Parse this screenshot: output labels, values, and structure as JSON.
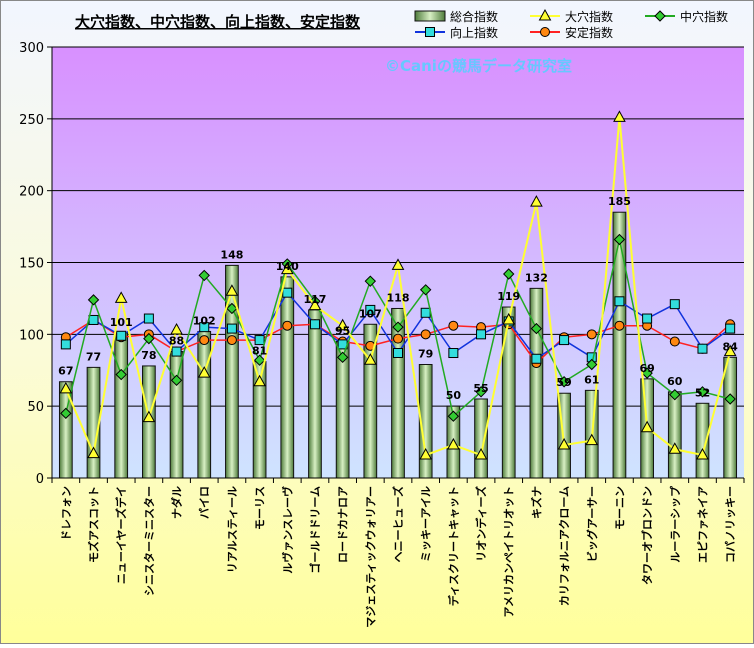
{
  "chart_data": {
    "type": "bar",
    "title": "大穴指数、中穴指数、向上指数、安定指数",
    "watermark": "©Caniの競馬データ研究室",
    "ylim": [
      0,
      300
    ],
    "yticks": [
      0,
      50,
      100,
      150,
      200,
      250,
      300
    ],
    "grid": true,
    "legend_position": "top-right",
    "categories": [
      "ドレフォン",
      "モズアスコット",
      "ニューイヤーズデイ",
      "シニスターミニスター",
      "ナダル",
      "パイロ",
      "リアルスティール",
      "モーリス",
      "ルヴァンスレーヴ",
      "ゴールドドリーム",
      "ロードカナロア",
      "マジェスティックウォリアー",
      "ヘニーヒューズ",
      "ミッキーアイル",
      "ディスクリートキャット",
      "リオンディーズ",
      "アメリカンペイトリオット",
      "キズナ",
      "カリフォルニアクローム",
      "ビッグアーサー",
      "モーニン",
      "タワーオブロンドン",
      "ルーラーシップ",
      "エピファネイア",
      "コパノリッキー"
    ],
    "series": [
      {
        "name": "総合指数",
        "type": "bar",
        "color": "#b9dca0",
        "values": [
          67,
          77,
          101,
          78,
          88,
          102,
          148,
          81,
          140,
          117,
          95,
          107,
          118,
          79,
          50,
          55,
          119,
          132,
          59,
          61,
          185,
          69,
          60,
          52,
          84
        ]
      },
      {
        "name": "大穴指数",
        "type": "line",
        "color": "#ffff33",
        "marker": "triangle",
        "values": [
          62,
          17,
          125,
          42,
          103,
          73,
          130,
          67,
          145,
          120,
          106,
          82,
          148,
          16,
          23,
          16,
          110,
          192,
          23,
          26,
          251,
          35,
          20,
          16,
          88
        ]
      },
      {
        "name": "中穴指数",
        "type": "line",
        "color": "#22aa22",
        "marker": "diamond",
        "values": [
          45,
          124,
          72,
          97,
          68,
          141,
          118,
          82,
          149,
          123,
          84,
          137,
          105,
          131,
          43,
          60,
          142,
          104,
          67,
          79,
          166,
          73,
          58,
          60,
          55
        ]
      },
      {
        "name": "向上指数",
        "type": "line",
        "color": "#1133dd",
        "marker": "square",
        "values": [
          93,
          110,
          99,
          111,
          88,
          105,
          104,
          96,
          129,
          107,
          93,
          117,
          87,
          115,
          87,
          100,
          109,
          83,
          96,
          84,
          123,
          111,
          121,
          90,
          104
        ]
      },
      {
        "name": "安定指数",
        "type": "line",
        "color": "#ff2222",
        "marker": "circle",
        "values": [
          98,
          110,
          98,
          100,
          88,
          96,
          96,
          96,
          106,
          107,
          95,
          92,
          97,
          100,
          106,
          105,
          107,
          80,
          98,
          100,
          106,
          106,
          95,
          90,
          107
        ]
      }
    ],
    "bar_labels": [
      "67",
      "77",
      "101",
      "78",
      "88",
      "102",
      "148",
      "81",
      "140",
      "117",
      "95",
      "107",
      "118",
      "79",
      "50",
      "55",
      "119",
      "132",
      "59",
      "61",
      "185",
      "69",
      "60",
      "52",
      "84"
    ]
  }
}
